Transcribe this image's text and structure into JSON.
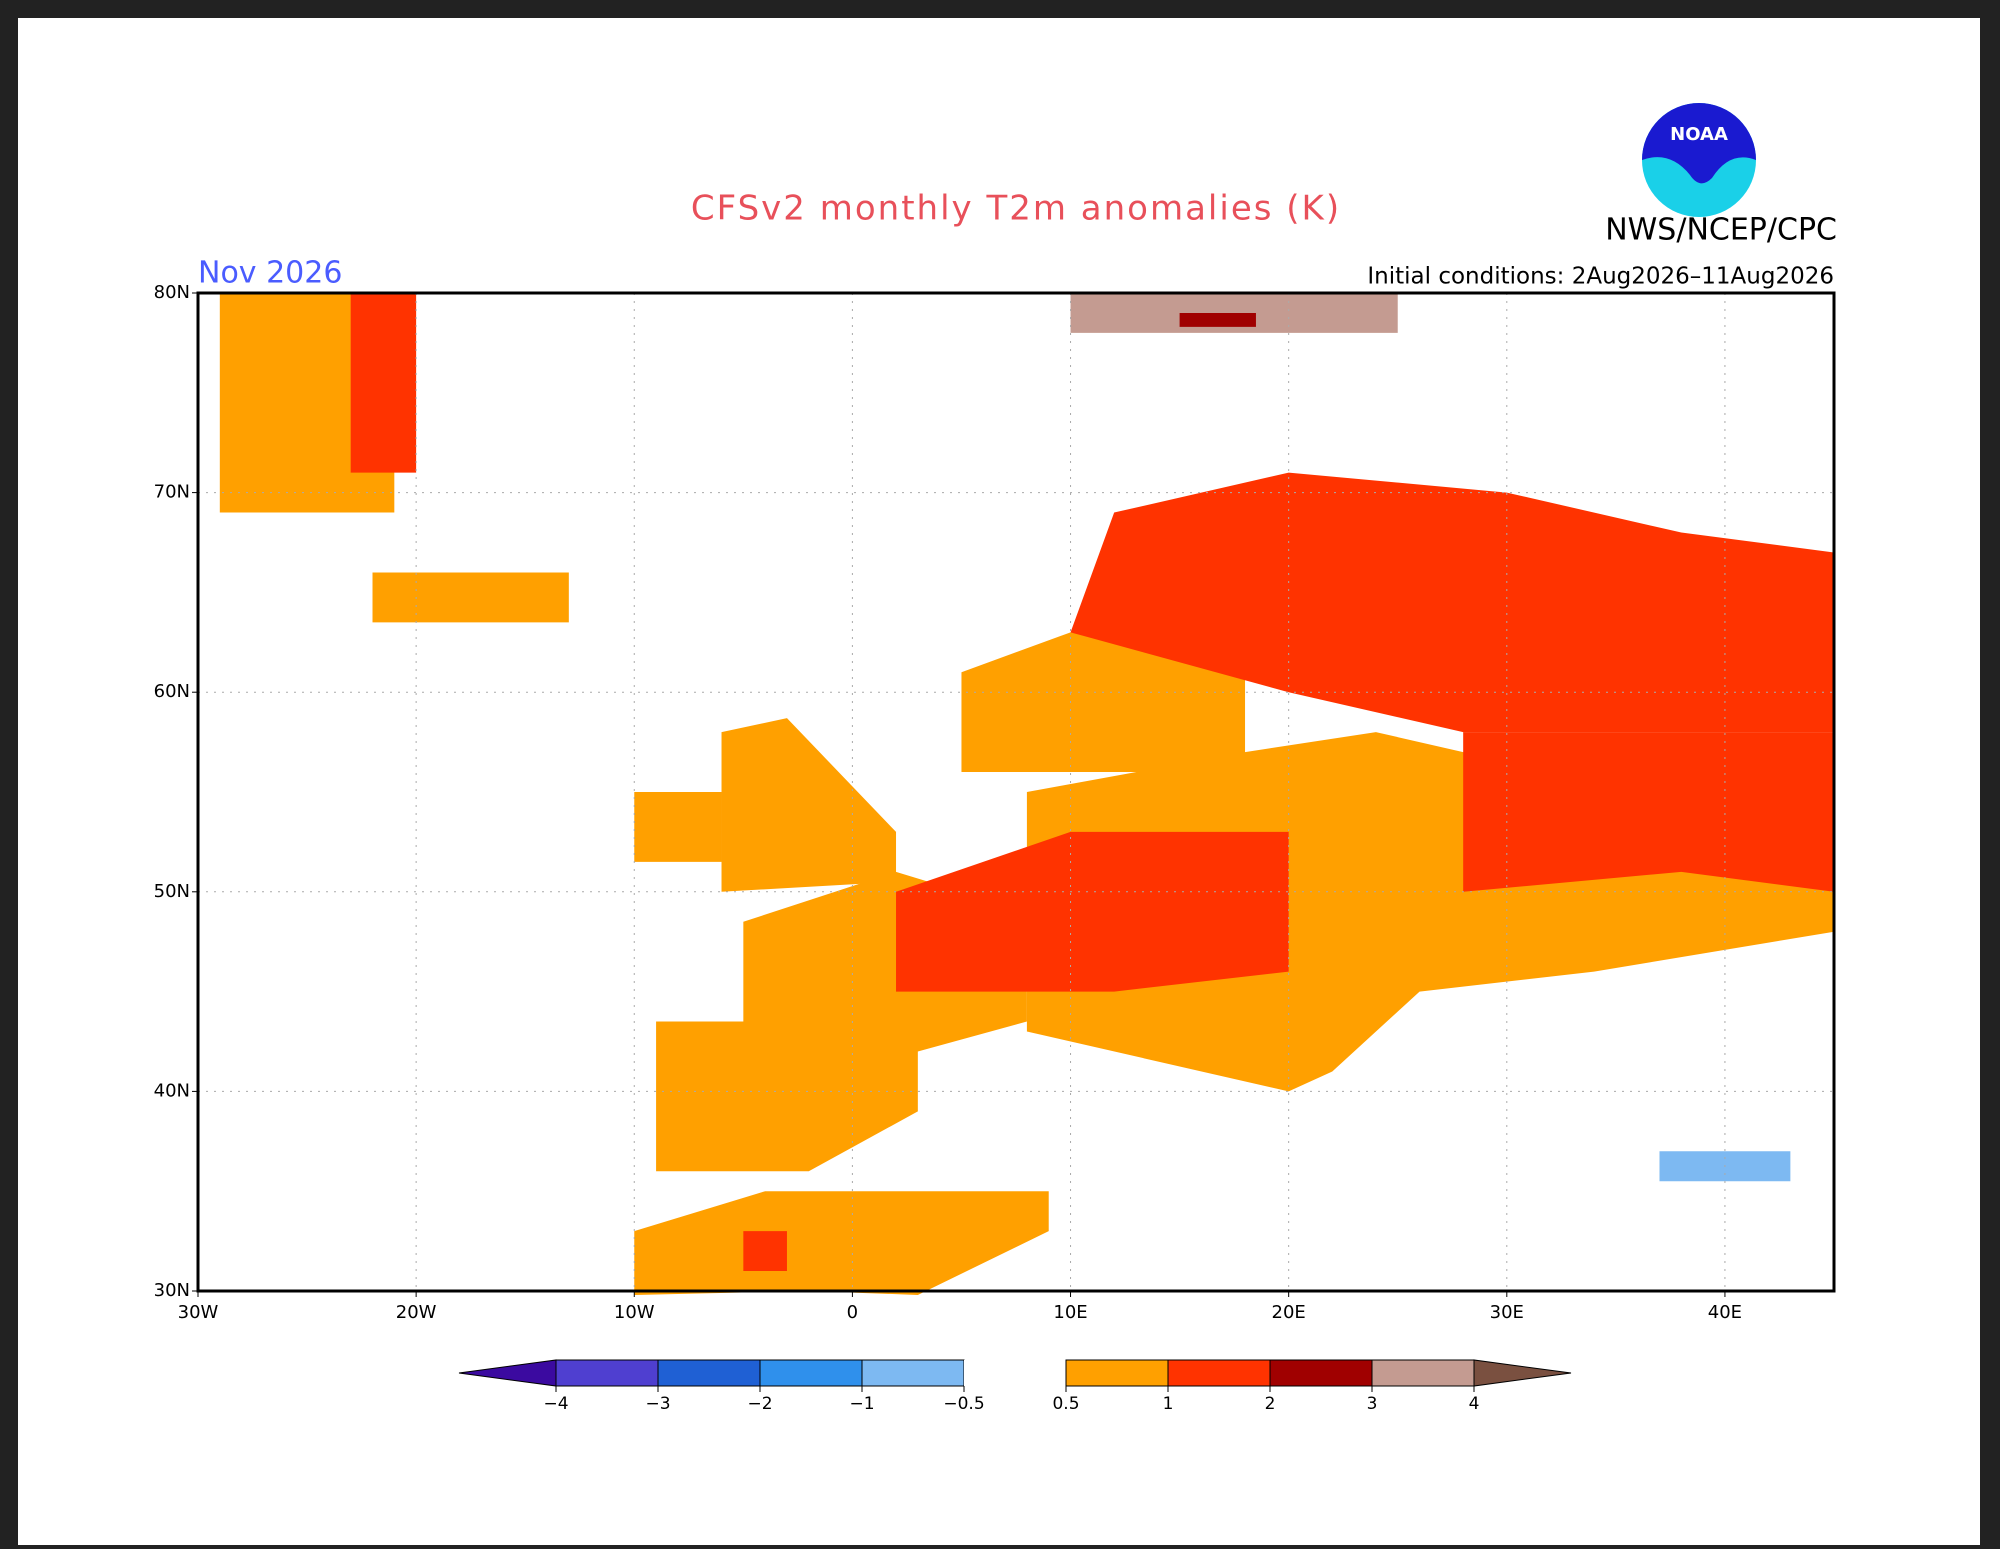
{
  "title": "CFSv2 monthly T2m anomalies (K)",
  "period": "Nov 2026",
  "agency": "NWS/NCEP/CPC",
  "logo": "NOAA",
  "initial_conditions": "Initial conditions: 2Aug2026–11Aug2026",
  "lat_labels": [
    "80N",
    "70N",
    "60N",
    "50N",
    "40N",
    "30N"
  ],
  "lon_labels": [
    "30W",
    "20W",
    "10W",
    "0",
    "10E",
    "20E",
    "30E",
    "40E"
  ],
  "colorbar": {
    "labels": [
      "−4",
      "−3",
      "−2",
      "−1",
      "−0.5",
      "0.5",
      "1",
      "2",
      "3",
      "4"
    ],
    "colors": [
      "#3b0aa0",
      "#4f3fd0",
      "#1f60d4",
      "#2f90ec",
      "#7db9f2",
      "#ffffff",
      "#ffa000",
      "#ff3300",
      "#a00000",
      "#c49b91",
      "#7a5040"
    ]
  }
}
